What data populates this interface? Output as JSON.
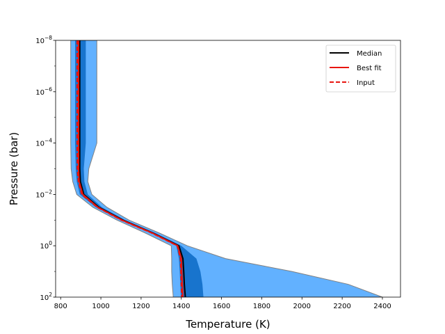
{
  "chart_data": {
    "type": "line",
    "title": "",
    "xlabel": "Temperature  (K)",
    "ylabel": "Pressure  (bar)",
    "xlim": [
      775,
      2490
    ],
    "ylim_log10": [
      2,
      -8
    ],
    "y_scale": "log",
    "y_inverted": true,
    "x_ticks": [
      800,
      1000,
      1200,
      1400,
      1600,
      1800,
      2000,
      2200,
      2400
    ],
    "y_ticks_log10": [
      2,
      0,
      -2,
      -4,
      -6,
      -8
    ],
    "y_tick_labels": [
      {
        "base": "10",
        "exp": "2"
      },
      {
        "base": "10",
        "exp": "0"
      },
      {
        "base": "10",
        "exp": "−2"
      },
      {
        "base": "10",
        "exp": "−4"
      },
      {
        "base": "10",
        "exp": "−6"
      },
      {
        "base": "10",
        "exp": "−8"
      }
    ],
    "log10_pressure": [
      -8,
      -6,
      -4,
      -3,
      -2.5,
      -2,
      -1.5,
      -1,
      -0.5,
      0,
      0.5,
      1,
      1.5,
      2
    ],
    "bands": [
      {
        "level": "2-sigma",
        "color": "#62b1ff",
        "low": [
          850,
          850,
          850,
          852,
          860,
          880,
          960,
          1080,
          1220,
          1350,
          1352,
          1352,
          1355,
          1360
        ],
        "high": [
          980,
          980,
          980,
          940,
          935,
          955,
          1030,
          1140,
          1290,
          1430,
          1620,
          1950,
          2230,
          2400
        ]
      },
      {
        "level": "1-sigma",
        "color": "#1874cd",
        "low": [
          872,
          872,
          872,
          875,
          880,
          895,
          975,
          1100,
          1250,
          1375,
          1388,
          1392,
          1395,
          1398
        ],
        "high": [
          925,
          925,
          925,
          915,
          918,
          935,
          1005,
          1120,
          1270,
          1400,
          1475,
          1495,
          1505,
          1510
        ]
      }
    ],
    "series": [
      {
        "name": "Median",
        "color": "#000000",
        "dash": "solid",
        "values": [
          895,
          895,
          895,
          895,
          898,
          915,
          990,
          1110,
          1258,
          1388,
          1408,
          1412,
          1415,
          1420
        ]
      },
      {
        "name": "Best fit",
        "color": "#e8150f",
        "dash": "solid",
        "values": [
          889,
          889,
          889,
          889,
          892,
          910,
          985,
          1105,
          1255,
          1382,
          1400,
          1402,
          1405,
          1408
        ]
      },
      {
        "name": "Input",
        "color": "#e8150f",
        "dash": "dashed",
        "values": [
          882,
          882,
          882,
          883,
          888,
          905,
          982,
          1102,
          1252,
          1380,
          1396,
          1398,
          1400,
          1402
        ]
      }
    ],
    "legend": {
      "position": "top-right",
      "entries": [
        "Median",
        "Best fit",
        "Input"
      ]
    }
  }
}
